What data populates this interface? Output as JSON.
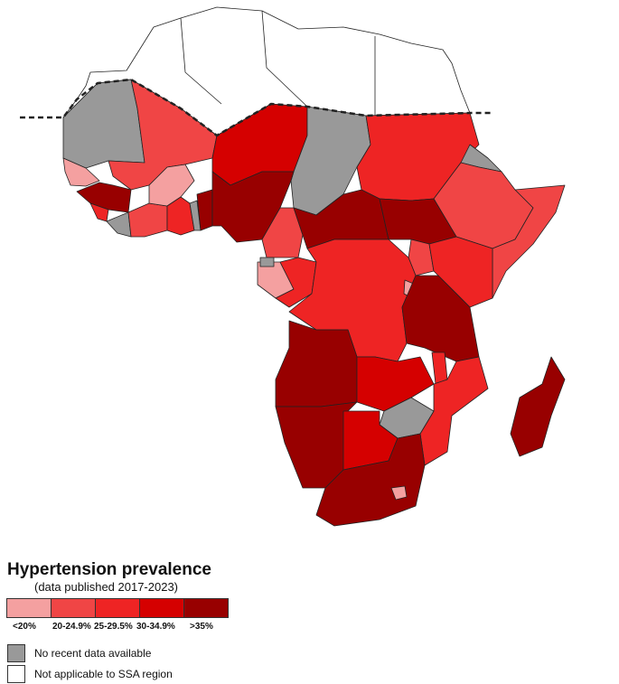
{
  "legend": {
    "title": "Hypertension prevalence",
    "subtitle": "(data published 2017-2023)",
    "classes": [
      {
        "label": "<20%",
        "color": "#f4a0a0"
      },
      {
        "label": "20-24.9%",
        "color": "#f04545"
      },
      {
        "label": "25-29.5%",
        "color": "#ee2424"
      },
      {
        "label": "30-34.9%",
        "color": "#d50000"
      },
      {
        "label": ">35%",
        "color": "#980000"
      }
    ],
    "no_data": {
      "label": "No recent data available",
      "color": "#999999"
    },
    "not_applicable": {
      "label": "Not applicable to SSA region",
      "color": "#ffffff"
    }
  },
  "boundary_line": {
    "color": "#f5e800"
  }
}
